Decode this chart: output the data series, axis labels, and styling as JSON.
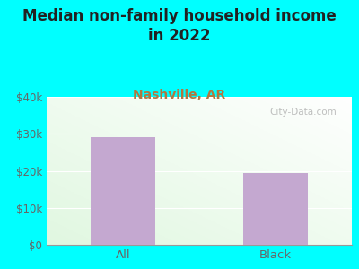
{
  "title": "Median non-family household income\nin 2022",
  "subtitle": "Nashville, AR",
  "categories": [
    "All",
    "Black"
  ],
  "values": [
    29000,
    19500
  ],
  "bar_color": "#C4A8D0",
  "bg_color": "#00FFFF",
  "title_color": "#222222",
  "subtitle_color": "#B07840",
  "tick_label_color": "#666666",
  "ylim": [
    0,
    40000
  ],
  "yticks": [
    0,
    10000,
    20000,
    30000,
    40000
  ],
  "ytick_labels": [
    "$0",
    "$10k",
    "$20k",
    "$30k",
    "$40k"
  ],
  "watermark": "City-Data.com",
  "title_fontsize": 12,
  "subtitle_fontsize": 10
}
